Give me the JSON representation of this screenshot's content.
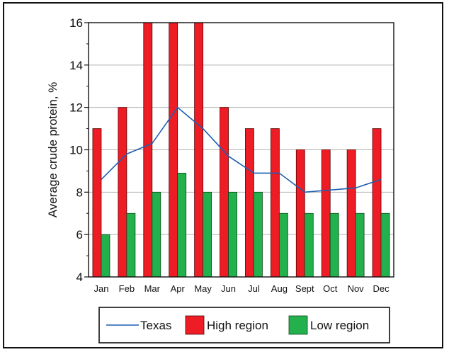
{
  "chart_data": {
    "type": "bar",
    "title": "",
    "xlabel": "",
    "ylabel": "Average crude protein, %",
    "ylim": [
      4,
      16
    ],
    "yticks": [
      4,
      6,
      8,
      10,
      12,
      14,
      16
    ],
    "categories": [
      "Jan",
      "Feb",
      "Mar",
      "Apr",
      "May",
      "Jun",
      "Jul",
      "Aug",
      "Sept",
      "Oct",
      "Nov",
      "Dec"
    ],
    "series": [
      {
        "name": "High region",
        "kind": "bar",
        "color": "#ee1c24",
        "values": [
          11,
          12,
          16,
          16,
          16,
          12,
          11,
          11,
          10,
          10,
          10,
          11
        ]
      },
      {
        "name": "Low region",
        "kind": "bar",
        "color": "#22b14c",
        "values": [
          6,
          7,
          8,
          8.9,
          8,
          8,
          8,
          7,
          7,
          7,
          7,
          7
        ]
      },
      {
        "name": "Texas",
        "kind": "line",
        "color": "#1f5fb0",
        "values": [
          8.6,
          9.8,
          10.3,
          12,
          11,
          9.7,
          8.9,
          8.9,
          8,
          8.1,
          8.2,
          8.6
        ]
      }
    ],
    "grid": true,
    "legend_position": "bottom",
    "legend_order": [
      "Texas",
      "High region",
      "Low region"
    ]
  }
}
